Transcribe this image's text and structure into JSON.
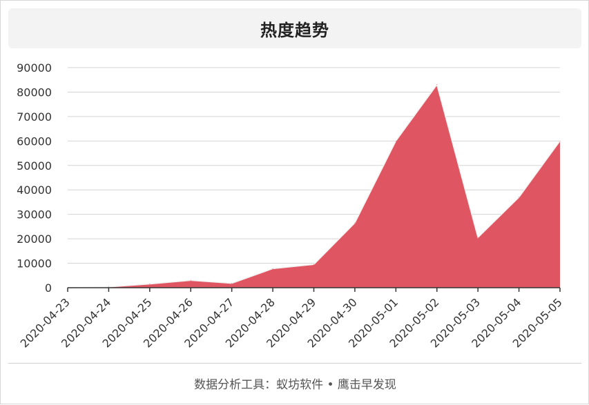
{
  "chart_data": {
    "type": "area",
    "title": "热度趋势",
    "x": [
      "2020-04-23",
      "2020-04-24",
      "2020-04-25",
      "2020-04-26",
      "2020-04-27",
      "2020-04-28",
      "2020-04-29",
      "2020-04-30",
      "2020-05-01",
      "2020-05-02",
      "2020-05-03",
      "2020-05-04",
      "2020-05-05"
    ],
    "series": [
      {
        "values": [
          0,
          300,
          1500,
          3000,
          1800,
          7800,
          9500,
          26500,
          60000,
          83000,
          20500,
          37000,
          60000
        ],
        "color": "#e05562"
      }
    ],
    "ylim": [
      0,
      90000
    ],
    "yticks": [
      0,
      10000,
      20000,
      30000,
      40000,
      50000,
      60000,
      70000,
      80000,
      90000
    ],
    "grid": true,
    "legend": "none"
  },
  "footer": {
    "text": "数据分析工具：蚁坊软件 • 鹰击早发现"
  }
}
